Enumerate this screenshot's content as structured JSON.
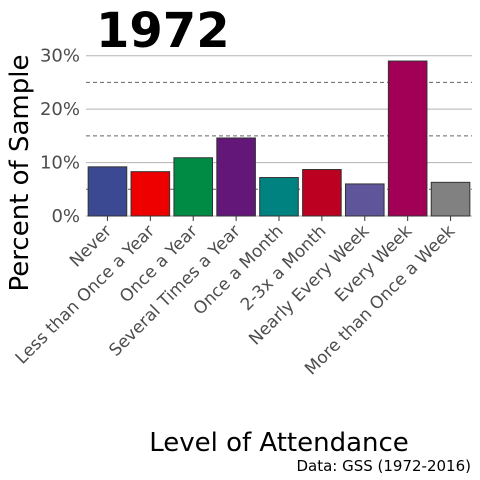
{
  "chart_data": {
    "type": "bar",
    "title": "1972",
    "xlabel": "Level of Attendance",
    "ylabel": "Percent of Sample",
    "caption": "Data: GSS (1972-2016)",
    "ylim": [
      0,
      32
    ],
    "yticks": [
      {
        "value": 0,
        "label": "0%"
      },
      {
        "value": 10,
        "label": "10%"
      },
      {
        "value": 20,
        "label": "20%"
      },
      {
        "value": 30,
        "label": "30%"
      }
    ],
    "minor_dashed_gridlines": [
      5,
      15,
      25
    ],
    "grid": true,
    "legend": "none",
    "categories": [
      "Never",
      "Less than Once a Year",
      "Once a Year",
      "Several Times a Year",
      "Once a Month",
      "2-3x a Month",
      "Nearly Every Week",
      "Every Week",
      "More than Once a Week"
    ],
    "values": [
      9.2,
      8.3,
      10.9,
      14.6,
      7.2,
      8.7,
      6.0,
      29.0,
      6.3
    ],
    "colors": [
      "#3B4992",
      "#EE0000",
      "#008B45",
      "#631879",
      "#008280",
      "#BB0021",
      "#5F559B",
      "#A20056",
      "#808180"
    ]
  }
}
